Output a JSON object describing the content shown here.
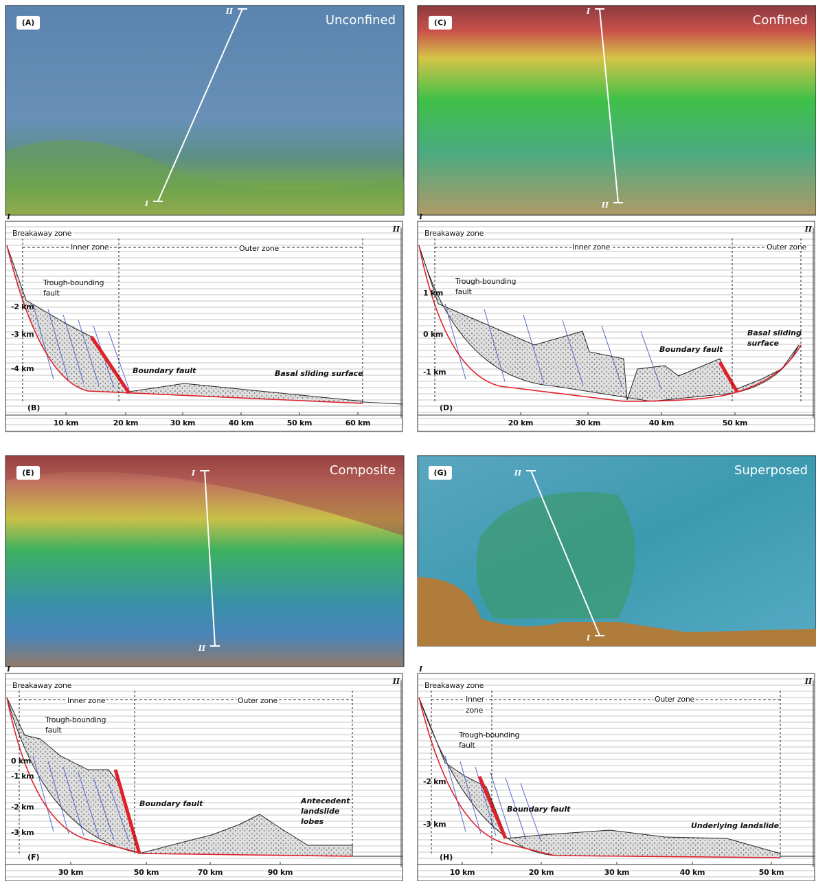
{
  "panels": [
    {
      "label": "(A)",
      "title": "Unconfined",
      "start": "I",
      "end": "II"
    },
    {
      "label": "(C)",
      "title": "Confined",
      "start": "I",
      "end": "II"
    },
    {
      "label": "(E)",
      "title": "Composite",
      "start": "I",
      "end": "II"
    },
    {
      "label": "(G)",
      "title": "Superposed",
      "start": "I",
      "end": "II"
    }
  ],
  "sections": [
    {
      "label": "(B)",
      "start": "I",
      "end": "II",
      "zones": [
        [
          "Breakaway zone"
        ],
        [
          "Inner zone"
        ],
        [
          "Outer zone"
        ]
      ],
      "annotations": [
        [
          "Trough-bounding",
          "fault"
        ],
        [
          "Boundary fault"
        ],
        [
          "Basal sliding surface"
        ]
      ],
      "depths": [
        "-2 km",
        "-3 km",
        "-4 km"
      ],
      "distances": [
        "10 km",
        "20 km",
        "30 km",
        "40 km",
        "50 km",
        "60 km"
      ]
    },
    {
      "label": "(D)",
      "start": "I",
      "end": "II",
      "zones": [
        [
          "Breakaway zone"
        ],
        [
          "Inner zone"
        ],
        [
          "Outer zone"
        ]
      ],
      "annotations": [
        [
          "Trough-bounding",
          "fault"
        ],
        [
          "Boundary fault"
        ],
        [
          "Basal sliding",
          "surface"
        ]
      ],
      "depths": [
        "1 km",
        "0 km",
        "-1 km"
      ],
      "distances": [
        "20 km",
        "30 km",
        "40 km",
        "50 km"
      ]
    },
    {
      "label": "(F)",
      "start": "I",
      "end": "II",
      "zones": [
        [
          "Breakaway zone"
        ],
        [
          "Inner zone"
        ],
        [
          "Outer zone"
        ]
      ],
      "annotations": [
        [
          "Trough-bounding",
          "fault"
        ],
        [
          "Boundary fault"
        ],
        [
          "Antecedent",
          "landslide",
          "lobes"
        ]
      ],
      "depths": [
        "0 km",
        "-1 km",
        "-2 km",
        "-3 km"
      ],
      "distances": [
        "30 km",
        "50 km",
        "70 km",
        "90 km"
      ]
    },
    {
      "label": "(H)",
      "start": "I",
      "end": "II",
      "zones": [
        [
          "Breakaway zone"
        ],
        [
          "Inner",
          "zone"
        ],
        [
          "Outer zone"
        ]
      ],
      "annotations": [
        [
          "Trough-bounding",
          "fault"
        ],
        [
          "Boundary fault"
        ],
        [
          "Underlying landslide"
        ]
      ],
      "depths": [
        "-2 km",
        "-3 km"
      ],
      "distances": [
        "10 km",
        "20 km",
        "30 km",
        "40 km",
        "50 km"
      ]
    }
  ]
}
